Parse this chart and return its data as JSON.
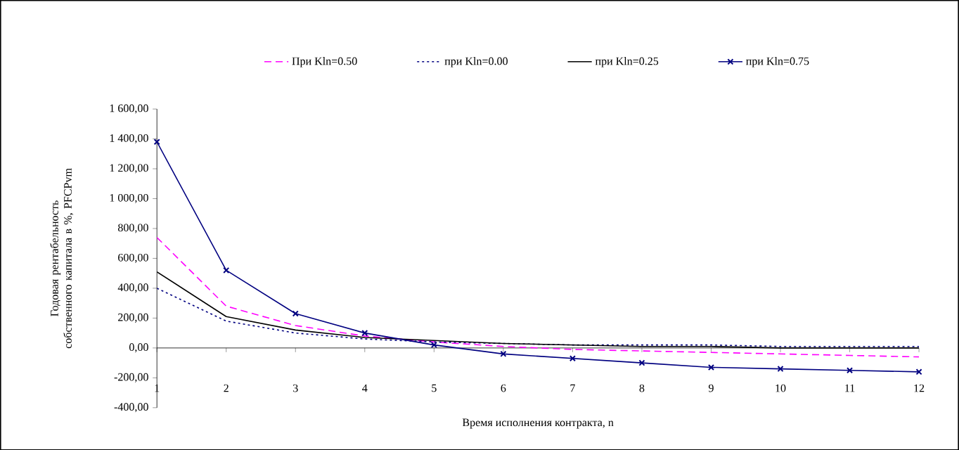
{
  "chart_data": {
    "type": "line",
    "xlabel": "Время исполнения контракта, n",
    "ylabel": "Годовая рентабельность собственного капитала в %, PFCPvm",
    "x": [
      1,
      2,
      3,
      4,
      5,
      6,
      7,
      8,
      9,
      10,
      11,
      12
    ],
    "xlim": [
      1,
      12
    ],
    "xticks": [
      1,
      2,
      3,
      4,
      5,
      6,
      7,
      8,
      9,
      10,
      11,
      12
    ],
    "ylim": [
      -400,
      1600
    ],
    "yticks": [
      {
        "value": -400,
        "label": "-400,00"
      },
      {
        "value": -200,
        "label": "-200,00"
      },
      {
        "value": 0,
        "label": "0,00"
      },
      {
        "value": 200,
        "label": "200,00"
      },
      {
        "value": 400,
        "label": "400,00"
      },
      {
        "value": 600,
        "label": "600,00"
      },
      {
        "value": 800,
        "label": "800,00"
      },
      {
        "value": 1000,
        "label": "1 000,00"
      },
      {
        "value": 1200,
        "label": "1 200,00"
      },
      {
        "value": 1400,
        "label": "1 400,00"
      },
      {
        "value": 1600,
        "label": "1 600,00"
      }
    ],
    "legend": "top",
    "series": [
      {
        "name": "При Kln=0.50",
        "color": "#ff00ff",
        "line_style": "dashed",
        "marker": "none",
        "values": [
          740,
          280,
          150,
          80,
          40,
          10,
          -10,
          -20,
          -30,
          -40,
          -50,
          -60
        ]
      },
      {
        "name": "при Kln=0.00",
        "color": "#000080",
        "line_style": "dotted",
        "marker": "none",
        "values": [
          400,
          180,
          100,
          60,
          40,
          30,
          20,
          20,
          20,
          10,
          10,
          10
        ]
      },
      {
        "name": "при Kln=0.25",
        "color": "#000000",
        "line_style": "solid",
        "marker": "none",
        "values": [
          510,
          210,
          120,
          70,
          50,
          30,
          20,
          10,
          10,
          0,
          0,
          0
        ]
      },
      {
        "name": "при Kln=0.75",
        "color": "#000080",
        "line_style": "solid",
        "marker": "cross",
        "values": [
          1380,
          520,
          230,
          100,
          20,
          -40,
          -70,
          -100,
          -130,
          -140,
          -150,
          -160
        ]
      }
    ]
  }
}
